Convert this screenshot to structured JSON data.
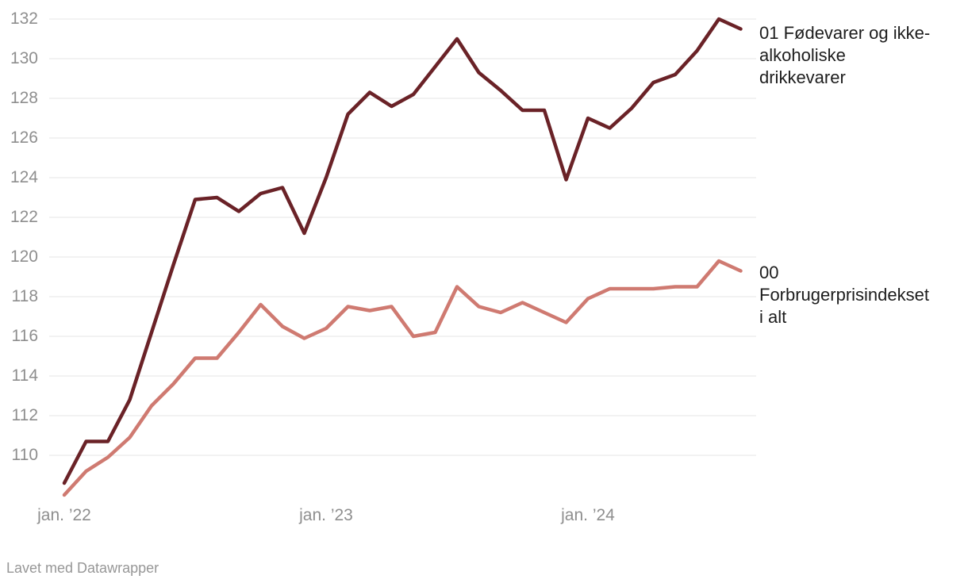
{
  "chart_data": {
    "type": "line",
    "title": "",
    "xlabel": "",
    "ylabel": "",
    "grid": true,
    "x_unit": "month",
    "x_range_months": 32,
    "x_ticks": [
      {
        "month_index": 0,
        "label": "jan. ’22"
      },
      {
        "month_index": 12,
        "label": "jan. ’23"
      },
      {
        "month_index": 24,
        "label": "jan. ’24"
      }
    ],
    "y_ticks": [
      110,
      112,
      114,
      116,
      118,
      120,
      122,
      124,
      126,
      128,
      130,
      132
    ],
    "ylim": [
      107.8,
      132.2
    ],
    "legend_position": "right",
    "series": [
      {
        "name": "01 Fødevarer og ikke-alkoholiske drikkevarer",
        "label_lines": "01 Fødevarer og ikke-\nalkoholiske\ndrikkevarer",
        "color": "#6a2227",
        "values": [
          108.6,
          110.7,
          110.7,
          112.8,
          116.2,
          119.6,
          122.9,
          123.0,
          122.3,
          123.2,
          123.5,
          121.2,
          124.0,
          127.2,
          128.3,
          127.6,
          128.2,
          129.6,
          131.0,
          129.3,
          128.4,
          127.4,
          127.4,
          123.9,
          127.0,
          126.5,
          127.5,
          128.8,
          129.2,
          130.4,
          132.0,
          131.5
        ]
      },
      {
        "name": "00 Forbrugerprisindekset i alt",
        "label_lines": "00\nForbrugerprisindekset\ni alt",
        "color": "#cf7a71",
        "values": [
          108.0,
          109.2,
          109.9,
          110.9,
          112.5,
          113.6,
          114.9,
          114.9,
          116.2,
          117.6,
          116.5,
          115.9,
          116.4,
          117.5,
          117.3,
          117.5,
          116.0,
          116.2,
          118.5,
          117.5,
          117.2,
          117.7,
          117.2,
          116.7,
          117.9,
          118.4,
          118.4,
          118.4,
          118.5,
          118.5,
          119.8,
          119.3
        ]
      }
    ]
  },
  "footer": {
    "text": "Lavet med Datawrapper"
  },
  "colors": {
    "background": "#ffffff",
    "grid": "#e4e4e4",
    "axis_text": "#8e8e8e",
    "legend_text": "#1d1d1d",
    "footer_text": "#979797"
  }
}
